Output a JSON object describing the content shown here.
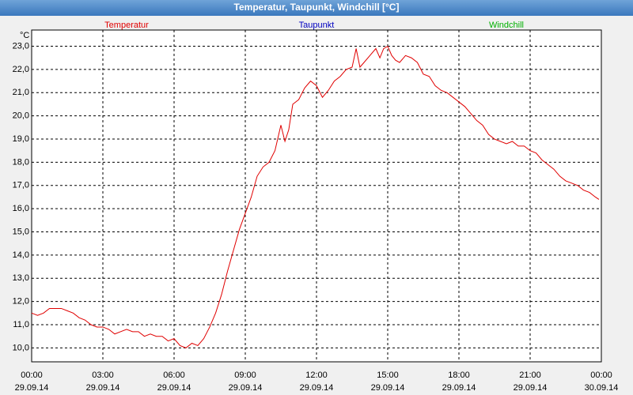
{
  "chart_data": {
    "type": "line",
    "title": "Temperatur, Taupunkt, Windchill [°C]",
    "y_unit": "°C",
    "legend": [
      {
        "name": "Temperatur",
        "color": "#e00000"
      },
      {
        "name": "Taupunkt",
        "color": "#0000c0"
      },
      {
        "name": "Windchill",
        "color": "#00b000"
      }
    ],
    "x": [
      0,
      0.25,
      0.5,
      0.75,
      1,
      1.25,
      1.5,
      1.75,
      2,
      2.25,
      2.5,
      2.75,
      3,
      3.25,
      3.5,
      3.75,
      4,
      4.25,
      4.5,
      4.75,
      5,
      5.25,
      5.5,
      5.75,
      6,
      6.25,
      6.5,
      6.75,
      7,
      7.25,
      7.5,
      7.75,
      8,
      8.25,
      8.5,
      8.75,
      9,
      9.25,
      9.5,
      9.75,
      10,
      10.25,
      10.5,
      10.67,
      10.83,
      11,
      11.25,
      11.5,
      11.75,
      12,
      12.25,
      12.5,
      12.75,
      13,
      13.25,
      13.5,
      13.67,
      13.83,
      14,
      14.25,
      14.5,
      14.67,
      14.83,
      15,
      15.17,
      15.33,
      15.5,
      15.75,
      16,
      16.25,
      16.5,
      16.75,
      17,
      17.25,
      17.5,
      17.75,
      18,
      18.25,
      18.5,
      18.75,
      19,
      19.25,
      19.5,
      19.75,
      20,
      20.25,
      20.5,
      20.75,
      21,
      21.25,
      21.5,
      21.75,
      22,
      22.25,
      22.5,
      22.75,
      23,
      23.25,
      23.5,
      23.75,
      23.9
    ],
    "series": [
      {
        "name": "Temperatur",
        "color": "#e00000",
        "values": [
          11.5,
          11.4,
          11.5,
          11.7,
          11.7,
          11.7,
          11.6,
          11.5,
          11.3,
          11.2,
          11.0,
          10.9,
          10.9,
          10.8,
          10.6,
          10.7,
          10.8,
          10.7,
          10.7,
          10.5,
          10.6,
          10.5,
          10.5,
          10.3,
          10.4,
          10.1,
          10.0,
          10.2,
          10.1,
          10.4,
          10.9,
          11.5,
          12.3,
          13.3,
          14.2,
          15.1,
          15.8,
          16.5,
          17.4,
          17.8,
          18.0,
          18.5,
          19.6,
          18.9,
          19.4,
          20.5,
          20.7,
          21.2,
          21.5,
          21.3,
          20.8,
          21.1,
          21.5,
          21.7,
          22.0,
          22.1,
          22.9,
          22.1,
          22.3,
          22.6,
          22.9,
          22.5,
          22.9,
          23.0,
          22.6,
          22.4,
          22.3,
          22.6,
          22.5,
          22.3,
          21.8,
          21.7,
          21.3,
          21.1,
          21.0,
          20.8,
          20.6,
          20.4,
          20.1,
          19.8,
          19.6,
          19.2,
          19.0,
          18.9,
          18.8,
          18.9,
          18.7,
          18.7,
          18.5,
          18.4,
          18.1,
          17.9,
          17.7,
          17.4,
          17.2,
          17.1,
          17.0,
          16.8,
          16.7,
          16.5,
          16.4
        ]
      }
    ],
    "xlim": [
      0,
      24
    ],
    "xticks": [
      {
        "value": 0,
        "label": "00:00"
      },
      {
        "value": 3,
        "label": "03:00"
      },
      {
        "value": 6,
        "label": "06:00"
      },
      {
        "value": 9,
        "label": "09:00"
      },
      {
        "value": 12,
        "label": "12:00"
      },
      {
        "value": 15,
        "label": "15:00"
      },
      {
        "value": 18,
        "label": "18:00"
      },
      {
        "value": 21,
        "label": "21:00"
      },
      {
        "value": 24,
        "label": "00:00"
      }
    ],
    "xtick_dates": [
      "29.09.14",
      "29.09.14",
      "29.09.14",
      "29.09.14",
      "29.09.14",
      "29.09.14",
      "29.09.14",
      "29.09.14",
      "30.09.14"
    ],
    "ylim": [
      9.4,
      23.7
    ],
    "yticks": [
      {
        "value": 10,
        "label": "10,0"
      },
      {
        "value": 11,
        "label": "11,0"
      },
      {
        "value": 12,
        "label": "12,0"
      },
      {
        "value": 13,
        "label": "13,0"
      },
      {
        "value": 14,
        "label": "14,0"
      },
      {
        "value": 15,
        "label": "15,0"
      },
      {
        "value": 16,
        "label": "16,0"
      },
      {
        "value": 17,
        "label": "17,0"
      },
      {
        "value": 18,
        "label": "18,0"
      },
      {
        "value": 19,
        "label": "19,0"
      },
      {
        "value": 20,
        "label": "20,0"
      },
      {
        "value": 21,
        "label": "21,0"
      },
      {
        "value": 22,
        "label": "22,0"
      },
      {
        "value": 23,
        "label": "23,0"
      }
    ],
    "grid": true
  }
}
